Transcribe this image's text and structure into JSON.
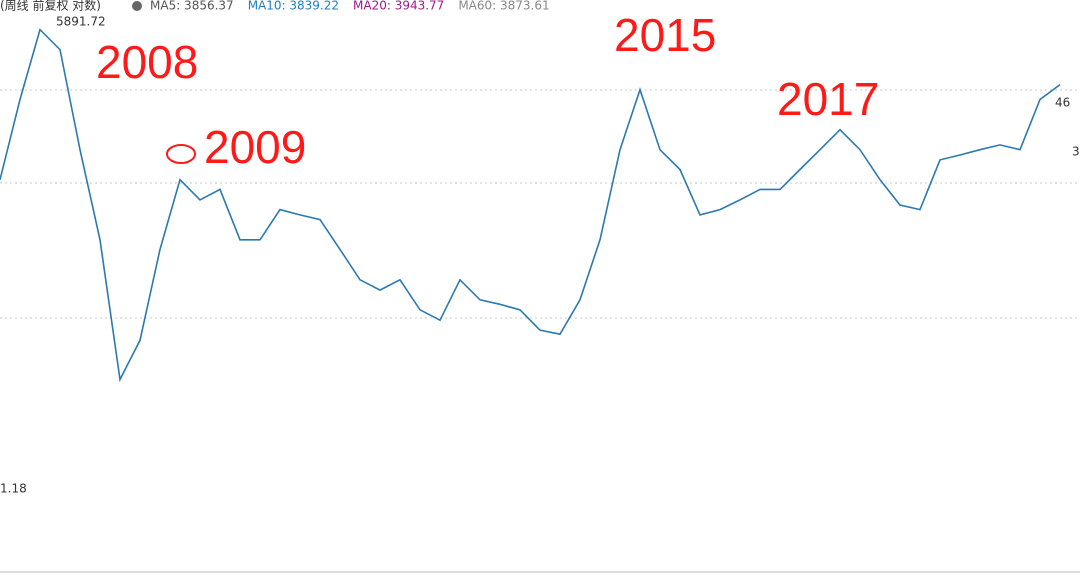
{
  "chart_data": {
    "type": "line",
    "header": "(周线 前复权 对数)",
    "indicators": [
      {
        "label": "MA5: 3856.37",
        "color": "#555555"
      },
      {
        "label": "MA10: 3839.22",
        "color": "#1f7fc4"
      },
      {
        "label": "MA20: 3943.77",
        "color": "#a0188c"
      },
      {
        "label": "MA60: 3873.61",
        "color": "#888888"
      }
    ],
    "max_label": "5891.72",
    "left_label": "1.18",
    "right_labels": [
      "46",
      "3"
    ],
    "annotations": [
      "2008",
      "2009",
      "2015",
      "2017"
    ],
    "log_scale": true,
    "ylim": [
      1080,
      6300
    ],
    "categories": [
      null,
      null,
      null,
      null,
      null,
      null,
      null,
      null,
      null,
      null,
      null,
      null,
      null,
      null,
      null,
      null,
      null,
      null,
      null,
      null,
      null,
      null,
      null,
      null,
      null,
      null,
      null,
      null,
      null,
      null,
      null,
      null,
      null,
      null,
      null,
      null,
      null,
      null,
      null,
      null,
      null,
      null,
      null,
      null,
      null,
      null,
      null,
      null,
      null,
      null,
      null,
      null,
      null,
      null
    ],
    "series": [
      {
        "name": null,
        "color": "#2a7ab0",
        "values": [
          3613,
          4631,
          5749,
          5403,
          3965,
          3000,
          1947,
          2198,
          2912,
          3613,
          3394,
          3506,
          3000,
          3000,
          3294,
          3240,
          3193,
          2912,
          2651,
          2568,
          2651,
          2416,
          2339,
          2651,
          2492,
          2457,
          2416,
          2268,
          2240,
          2492,
          3000,
          3965,
          4773,
          3965,
          3729,
          3240,
          3294,
          3394,
          3506,
          3506,
          3729,
          3965,
          4218,
          3965,
          3613,
          3341,
          3294,
          3841,
          3900,
          3965,
          4024,
          3965,
          4631,
          4849
        ]
      }
    ]
  }
}
